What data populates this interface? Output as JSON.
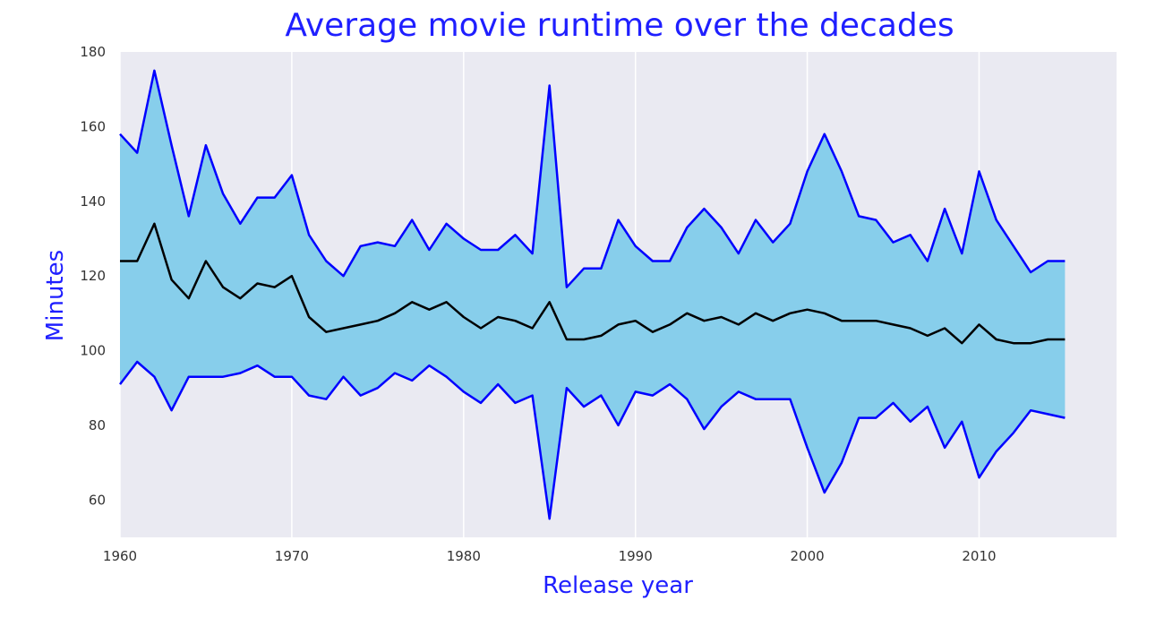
{
  "chart_data": {
    "type": "area",
    "title": "Average movie runtime over the decades",
    "xlabel": "Release year",
    "ylabel": "Minutes",
    "xlim": [
      1960,
      2018
    ],
    "ylim": [
      50,
      180
    ],
    "xticks": [
      1960,
      1970,
      1980,
      1990,
      2000,
      2010
    ],
    "yticks": [
      60,
      80,
      100,
      120,
      140,
      160,
      180
    ],
    "grid": "vertical",
    "colors": {
      "background": "#EAEAF2",
      "grid": "#FFFFFF",
      "fill": "#87CEEB",
      "band_line": "#0000FF",
      "mean_line": "#000000",
      "title": "#1F1FFF",
      "tick_label": "#333333"
    },
    "x": [
      1960,
      1961,
      1962,
      1963,
      1964,
      1965,
      1966,
      1967,
      1968,
      1969,
      1970,
      1971,
      1972,
      1973,
      1974,
      1975,
      1976,
      1977,
      1978,
      1979,
      1980,
      1981,
      1982,
      1983,
      1984,
      1985,
      1986,
      1987,
      1988,
      1989,
      1990,
      1991,
      1992,
      1993,
      1994,
      1995,
      1996,
      1997,
      1998,
      1999,
      2000,
      2001,
      2002,
      2003,
      2004,
      2005,
      2006,
      2007,
      2008,
      2009,
      2010,
      2011,
      2012,
      2013,
      2014,
      2015
    ],
    "series": [
      {
        "role": "upper",
        "values": [
          158,
          153,
          175,
          155,
          136,
          155,
          142,
          134,
          141,
          141,
          147,
          131,
          124,
          120,
          128,
          129,
          128,
          135,
          127,
          134,
          130,
          127,
          127,
          131,
          126,
          171,
          117,
          122,
          122,
          135,
          128,
          124,
          124,
          133,
          138,
          133,
          126,
          135,
          129,
          134,
          148,
          158,
          148,
          136,
          135,
          129,
          131,
          124,
          138,
          126,
          148,
          135,
          128,
          121,
          124,
          124
        ]
      },
      {
        "role": "mean",
        "values": [
          124,
          124,
          134,
          119,
          114,
          124,
          117,
          114,
          118,
          117,
          120,
          109,
          105,
          106,
          107,
          108,
          110,
          113,
          111,
          113,
          109,
          106,
          109,
          108,
          106,
          113,
          103,
          103,
          104,
          107,
          108,
          105,
          107,
          110,
          108,
          109,
          107,
          110,
          108,
          110,
          111,
          110,
          108,
          108,
          108,
          107,
          106,
          104,
          106,
          102,
          107,
          103,
          102,
          102,
          103,
          103
        ]
      },
      {
        "role": "lower",
        "values": [
          91,
          97,
          93,
          84,
          93,
          93,
          93,
          94,
          96,
          93,
          93,
          88,
          87,
          93,
          88,
          90,
          94,
          92,
          96,
          93,
          89,
          86,
          91,
          86,
          88,
          55,
          90,
          85,
          88,
          80,
          89,
          88,
          91,
          87,
          79,
          85,
          89,
          87,
          87,
          87,
          74,
          62,
          70,
          82,
          82,
          86,
          81,
          85,
          74,
          81,
          66,
          73,
          78,
          84,
          83,
          82
        ]
      }
    ]
  }
}
